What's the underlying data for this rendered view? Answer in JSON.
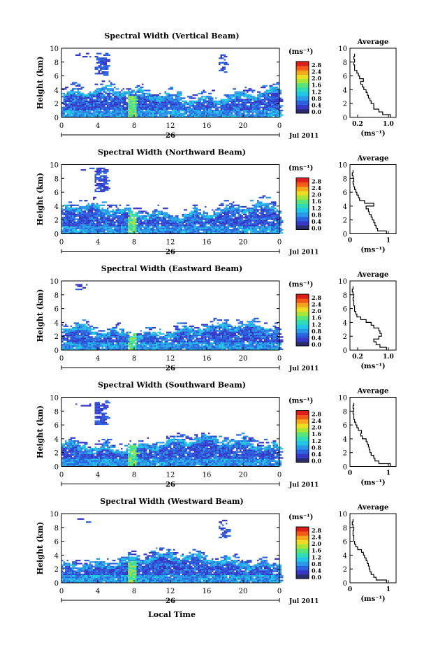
{
  "colors": {
    "scale": [
      "#2a2c6e",
      "#3838c8",
      "#2a62e0",
      "#2a9ae8",
      "#22c6e6",
      "#30dcb8",
      "#58e47a",
      "#a8e43a",
      "#ecdc22",
      "#f4a81e",
      "#f25c18",
      "#de1e18"
    ]
  },
  "common": {
    "ylabel": "Height (km)",
    "xticks": [
      "0",
      "4",
      "8",
      "12",
      "16",
      "20",
      "0"
    ],
    "day_label": "26",
    "date_label": "Jul 2011",
    "unit_label": "(ms⁻¹)",
    "colorbar_ticks": [
      "2.8",
      "2.4",
      "2.0",
      "1.6",
      "1.2",
      "0.8",
      "0.4",
      "0.0"
    ],
    "avg_title": "Average",
    "avg_unit": "(ms⁻¹)",
    "xlabel": "Local Time"
  },
  "chart_data": [
    {
      "type": "heatmap",
      "title": "Spectral Width (Vertical Beam)",
      "ylim": [
        0,
        10
      ],
      "xlim": [
        0,
        24
      ],
      "profile_xlim": [
        0,
        1.2
      ],
      "profile_ticks": [
        {
          "v": 0.2,
          "label": "0.2"
        },
        {
          "v": 1.0,
          "label": "1.0"
        }
      ],
      "profile": {
        "h": [
          0.2,
          0.6,
          1.0,
          1.4,
          1.8,
          2.2,
          2.6,
          3.0,
          3.4,
          3.8,
          4.2,
          4.6,
          5.0,
          5.4,
          5.8,
          6.2,
          6.6,
          7.0,
          7.4,
          7.8,
          8.2,
          8.6,
          9.0
        ],
        "w": [
          1.05,
          0.85,
          0.75,
          0.62,
          0.62,
          0.55,
          0.52,
          0.48,
          0.45,
          0.42,
          0.36,
          0.32,
          0.28,
          0.35,
          0.25,
          0.22,
          0.18,
          0.12,
          0.12,
          0.1,
          0.12,
          0.1,
          0.12
        ]
      }
    },
    {
      "type": "heatmap",
      "title": "Spectral Width (Northward Beam)",
      "ylim": [
        0,
        10
      ],
      "xlim": [
        0,
        24
      ],
      "profile_xlim": [
        0,
        1.2
      ],
      "profile_ticks": [
        {
          "v": 0,
          "label": "0"
        },
        {
          "v": 1.0,
          "label": "1"
        }
      ],
      "profile": {
        "h": [
          0.2,
          0.6,
          1.0,
          1.4,
          1.8,
          2.2,
          2.6,
          3.0,
          3.4,
          3.8,
          4.2,
          4.6,
          5.0,
          5.4,
          5.8,
          6.2,
          6.6,
          7.0,
          7.4,
          7.8,
          8.2,
          8.6,
          9.0
        ],
        "w": [
          0.95,
          0.72,
          0.68,
          0.65,
          0.62,
          0.58,
          0.55,
          0.5,
          0.48,
          0.42,
          0.62,
          0.38,
          0.25,
          0.22,
          0.18,
          0.15,
          0.12,
          0.1,
          0.08,
          0.1,
          0.08,
          0.06,
          0.08
        ]
      }
    },
    {
      "type": "heatmap",
      "title": "Spectral Width (Eastward Beam)",
      "ylim": [
        0,
        10
      ],
      "xlim": [
        0,
        24
      ],
      "profile_xlim": [
        0,
        1.2
      ],
      "profile_ticks": [
        {
          "v": 0.2,
          "label": "0.2"
        },
        {
          "v": 1.0,
          "label": "1.0"
        }
      ],
      "profile": {
        "h": [
          0.2,
          0.6,
          1.0,
          1.4,
          1.8,
          2.2,
          2.6,
          3.0,
          3.4,
          3.8,
          4.2,
          4.6,
          5.0,
          5.4,
          5.8,
          6.2,
          6.6,
          7.0,
          7.4,
          7.8,
          8.2,
          8.6,
          9.0
        ],
        "w": [
          0.95,
          0.78,
          0.68,
          0.62,
          0.75,
          0.82,
          0.78,
          0.75,
          0.62,
          0.55,
          0.42,
          0.28,
          0.18,
          0.15,
          0.12,
          0.12,
          0.1,
          0.1,
          0.08,
          0.1,
          0.08,
          0.06,
          0.08
        ]
      }
    },
    {
      "type": "heatmap",
      "title": "Spectral Width (Southward Beam)",
      "ylim": [
        0,
        10
      ],
      "xlim": [
        0,
        24
      ],
      "profile_xlim": [
        0,
        1.2
      ],
      "profile_ticks": [
        {
          "v": 0,
          "label": "0"
        },
        {
          "v": 1.0,
          "label": "1"
        }
      ],
      "profile": {
        "h": [
          0.2,
          0.6,
          1.0,
          1.4,
          1.8,
          2.2,
          2.6,
          3.0,
          3.4,
          3.8,
          4.2,
          4.6,
          5.0,
          5.4,
          5.8,
          6.2,
          6.6,
          7.0,
          7.4,
          7.8,
          8.2,
          8.6,
          9.0
        ],
        "w": [
          1.05,
          0.75,
          0.65,
          0.62,
          0.55,
          0.52,
          0.5,
          0.48,
          0.45,
          0.42,
          0.32,
          0.28,
          0.3,
          0.22,
          0.18,
          0.15,
          0.12,
          0.1,
          0.1,
          0.08,
          0.1,
          0.08,
          0.1
        ]
      }
    },
    {
      "type": "heatmap",
      "title": "Spectral Width (Westward Beam)",
      "ylim": [
        0,
        10
      ],
      "xlim": [
        0,
        24
      ],
      "profile_xlim": [
        0,
        1.2
      ],
      "profile_ticks": [
        {
          "v": 0,
          "label": "0"
        },
        {
          "v": 1.0,
          "label": "1"
        }
      ],
      "profile": {
        "h": [
          0.2,
          0.6,
          1.0,
          1.4,
          1.8,
          2.2,
          2.6,
          3.0,
          3.4,
          3.8,
          4.2,
          4.6,
          5.0,
          5.4,
          5.8,
          6.2,
          6.6,
          7.0,
          7.4,
          7.8,
          8.2,
          8.6,
          9.0
        ],
        "w": [
          0.95,
          0.68,
          0.62,
          0.55,
          0.52,
          0.5,
          0.48,
          0.45,
          0.42,
          0.38,
          0.35,
          0.3,
          0.2,
          0.15,
          0.12,
          0.1,
          0.1,
          0.08,
          0.08,
          0.1,
          0.08,
          0.06,
          0.08
        ]
      }
    }
  ]
}
